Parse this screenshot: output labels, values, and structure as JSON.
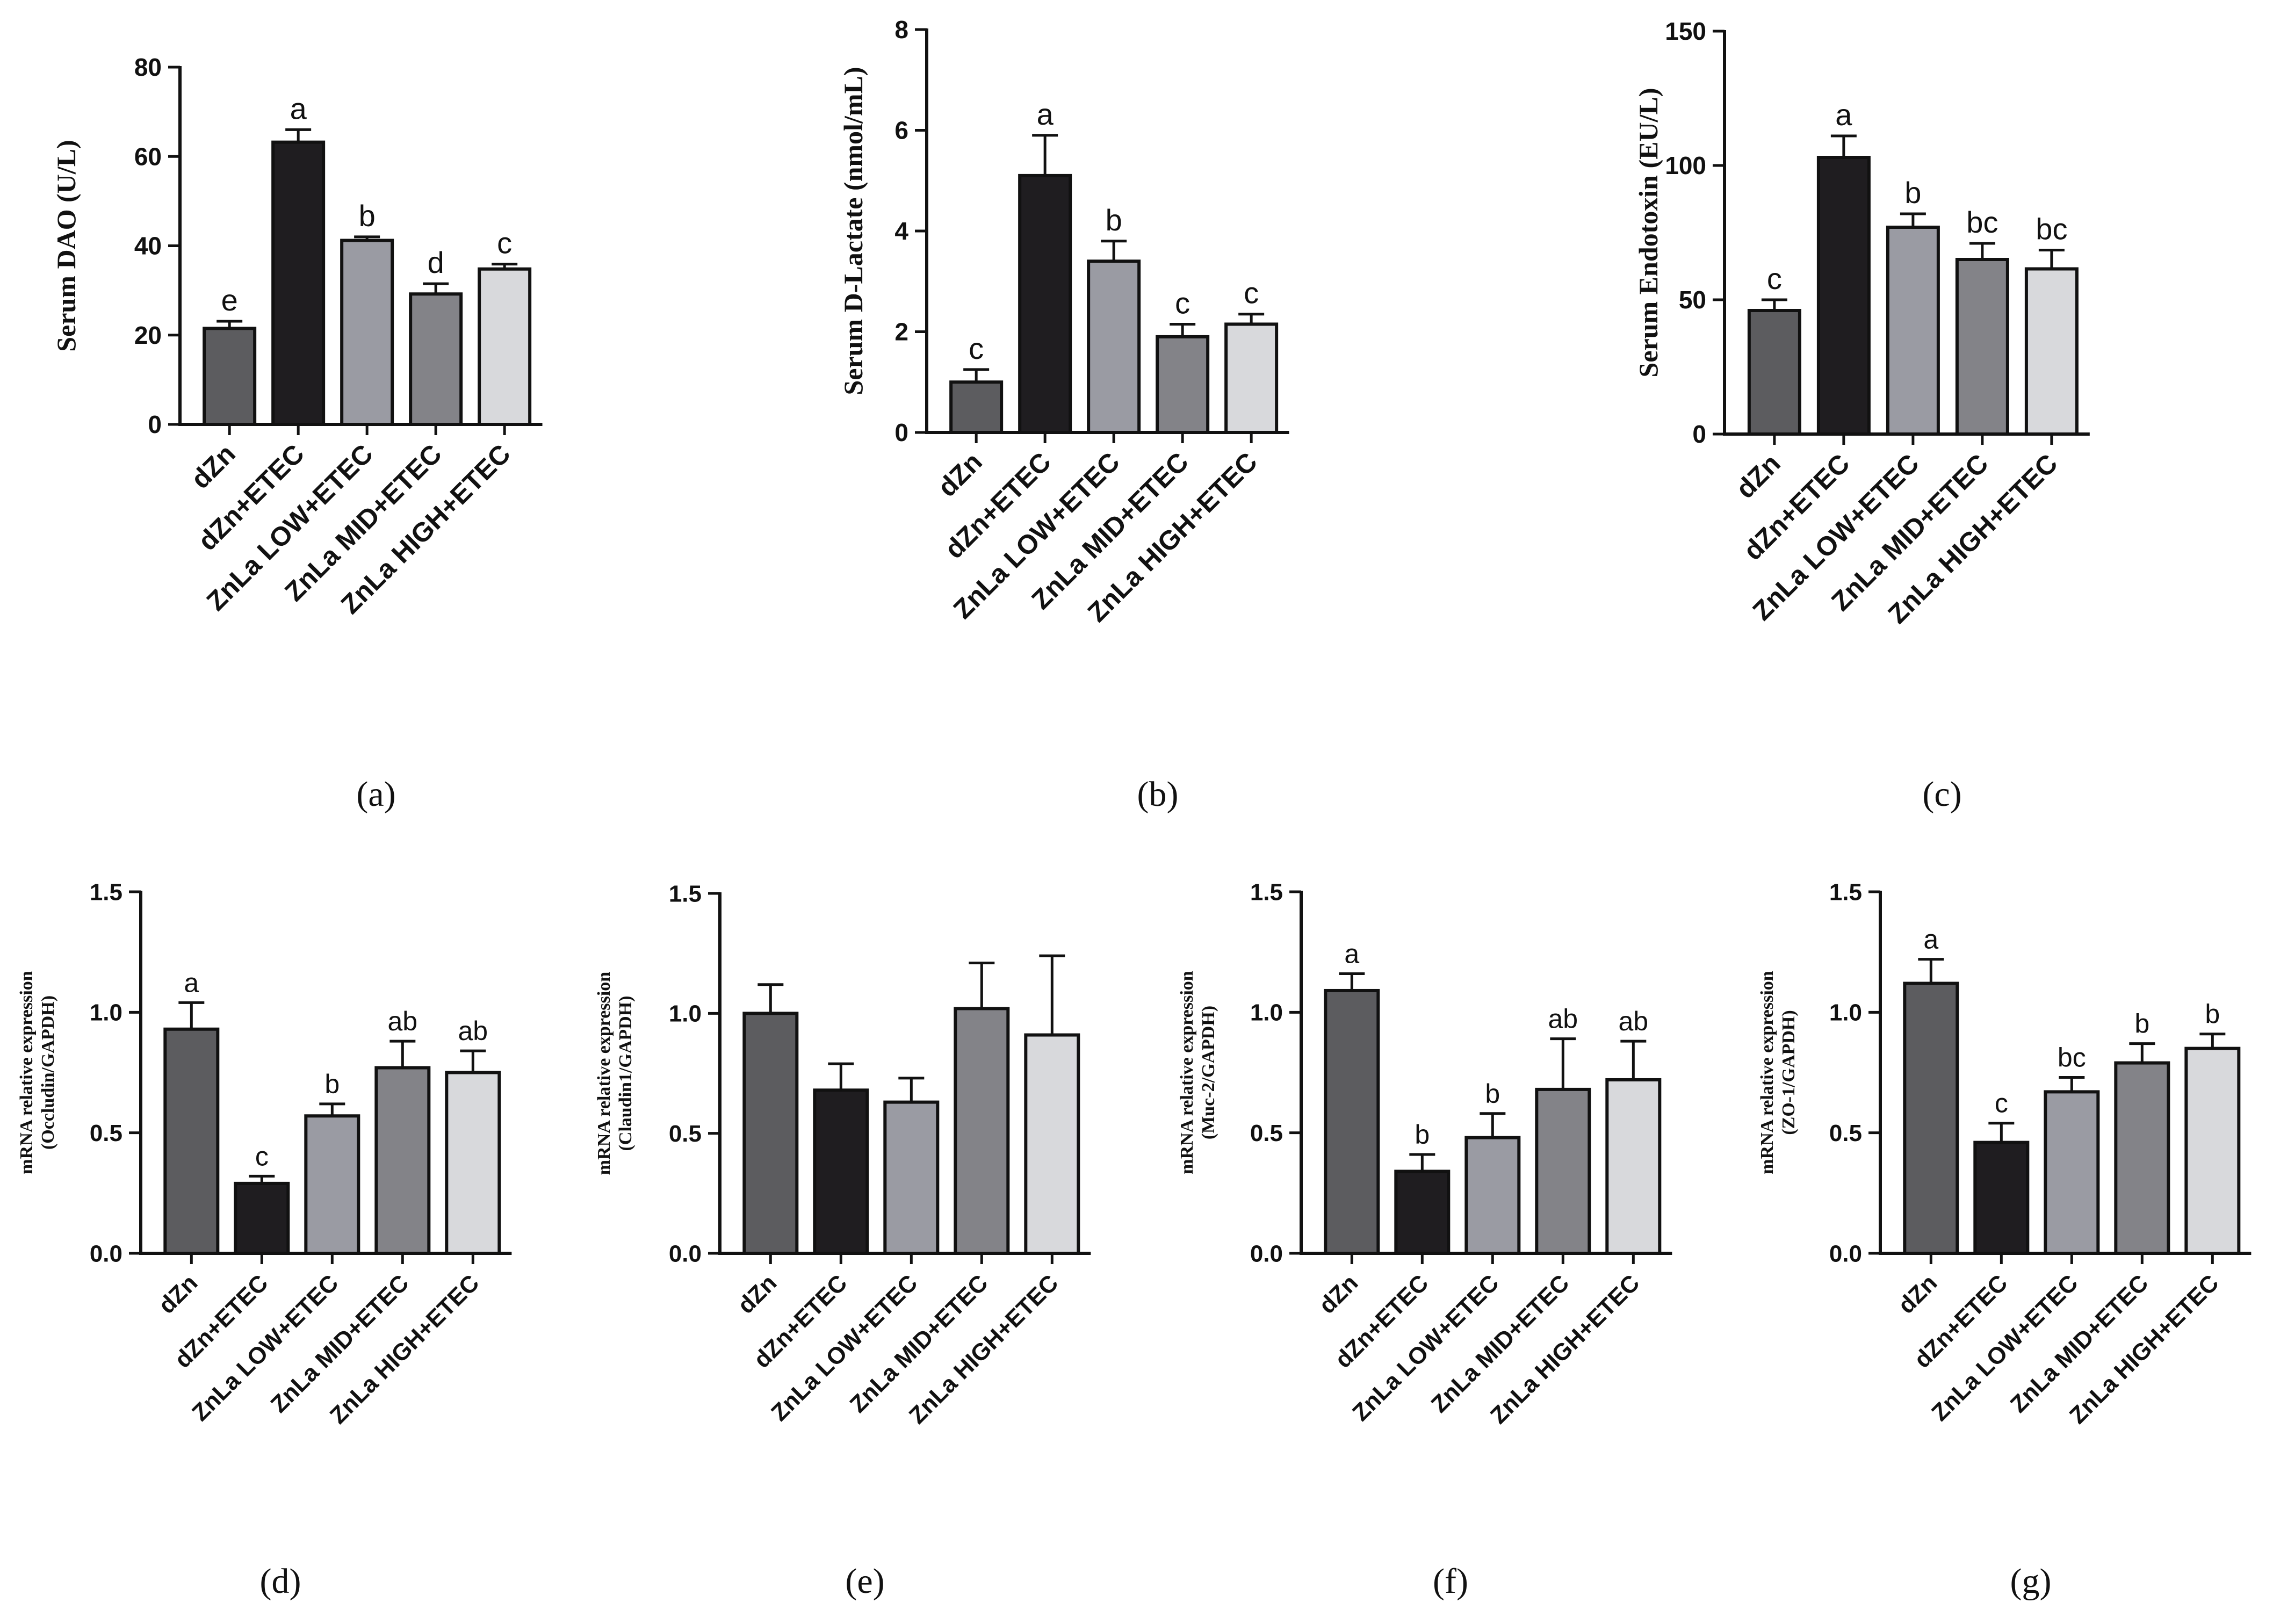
{
  "group_colors": [
    "#5c5c5f",
    "#1f1d20",
    "#9a9ba3",
    "#838388",
    "#d8d9dc"
  ],
  "chart_data": [
    {
      "type": "bar",
      "panel_label": "(a)",
      "ylabel": "Serum DAO (U/L)",
      "categories": [
        "dZn",
        "dZn+ETEC",
        "ZnLa LOW+ETEC",
        "ZnLa MID+ETEC",
        "ZnLa HIGH+ETEC"
      ],
      "values": [
        21.5,
        63.2,
        41.2,
        29.2,
        34.8
      ],
      "errors": [
        1.6,
        2.8,
        0.8,
        2.3,
        1.1
      ],
      "significance": [
        "e",
        "a",
        "b",
        "d",
        "c"
      ],
      "ylim": [
        0,
        80
      ],
      "yticks": [
        0,
        20,
        40,
        60,
        80
      ],
      "ytick_labels": [
        "0",
        "20",
        "40",
        "60",
        "80"
      ]
    },
    {
      "type": "bar",
      "panel_label": "(b)",
      "ylabel": "Serum D-Lactate (nmol/mL)",
      "categories": [
        "dZn",
        "dZn+ETEC",
        "ZnLa LOW+ETEC",
        "ZnLa MID+ETEC",
        "ZnLa HIGH+ETEC"
      ],
      "values": [
        1.0,
        5.1,
        3.4,
        1.9,
        2.15
      ],
      "errors": [
        0.25,
        0.8,
        0.4,
        0.25,
        0.2
      ],
      "significance": [
        "c",
        "a",
        "b",
        "c",
        "c"
      ],
      "ylim": [
        0,
        8
      ],
      "yticks": [
        0,
        2,
        4,
        6,
        8
      ],
      "ytick_labels": [
        "0",
        "2",
        "4",
        "6",
        "8"
      ]
    },
    {
      "type": "bar",
      "panel_label": "(c)",
      "ylabel": "Serum Endotoxin (EU/L)",
      "categories": [
        "dZn",
        "dZn+ETEC",
        "ZnLa LOW+ETEC",
        "ZnLa MID+ETEC",
        "ZnLa HIGH+ETEC"
      ],
      "values": [
        46,
        103,
        77,
        65,
        61.5
      ],
      "errors": [
        4,
        8,
        5,
        6,
        7
      ],
      "significance": [
        "c",
        "a",
        "b",
        "bc",
        "bc"
      ],
      "ylim": [
        0,
        150
      ],
      "yticks": [
        0,
        50,
        100,
        150
      ],
      "ytick_labels": [
        "0",
        "50",
        "100",
        "150"
      ]
    },
    {
      "type": "bar",
      "panel_label": "(d)",
      "ylabel": [
        "mRNA relative expression",
        "(Occludin/GAPDH)"
      ],
      "categories": [
        "dZn",
        "dZn+ETEC",
        "ZnLa LOW+ETEC",
        "ZnLa MID+ETEC",
        "ZnLa HIGH+ETEC"
      ],
      "values": [
        0.93,
        0.29,
        0.57,
        0.77,
        0.75
      ],
      "errors": [
        0.11,
        0.03,
        0.05,
        0.11,
        0.09
      ],
      "significance": [
        "a",
        "c",
        "b",
        "ab",
        "ab"
      ],
      "ylim": [
        0,
        1.5
      ],
      "yticks": [
        0,
        0.5,
        1.0,
        1.5
      ],
      "ytick_labels": [
        "0.0",
        "0.5",
        "1.0",
        "1.5"
      ]
    },
    {
      "type": "bar",
      "panel_label": "(e)",
      "ylabel": [
        "mRNA relative expression",
        "(Claudin1/GAPDH)"
      ],
      "categories": [
        "dZn",
        "dZn+ETEC",
        "ZnLa LOW+ETEC",
        "ZnLa MID+ETEC",
        "ZnLa HIGH+ETEC"
      ],
      "values": [
        1.0,
        0.68,
        0.63,
        1.02,
        0.91
      ],
      "errors": [
        0.12,
        0.11,
        0.1,
        0.19,
        0.33
      ],
      "significance": [
        "",
        "",
        "",
        "",
        ""
      ],
      "ylim": [
        0,
        1.5
      ],
      "yticks": [
        0,
        0.5,
        1.0,
        1.5
      ],
      "ytick_labels": [
        "0.0",
        "0.5",
        "1.0",
        "1.5"
      ]
    },
    {
      "type": "bar",
      "panel_label": "(f)",
      "ylabel": [
        "mRNA relative expression",
        "(Muc-2/GAPDH)"
      ],
      "categories": [
        "dZn",
        "dZn+ETEC",
        "ZnLa LOW+ETEC",
        "ZnLa MID+ETEC",
        "ZnLa HIGH+ETEC"
      ],
      "values": [
        1.09,
        0.34,
        0.48,
        0.68,
        0.72
      ],
      "errors": [
        0.07,
        0.07,
        0.1,
        0.21,
        0.16
      ],
      "significance": [
        "a",
        "b",
        "b",
        "ab",
        "ab"
      ],
      "ylim": [
        0,
        1.5
      ],
      "yticks": [
        0,
        0.5,
        1.0,
        1.5
      ],
      "ytick_labels": [
        "0.0",
        "0.5",
        "1.0",
        "1.5"
      ]
    },
    {
      "type": "bar",
      "panel_label": "(g)",
      "ylabel": [
        "mRNA relative expression",
        "(ZO-1/GAPDH)"
      ],
      "categories": [
        "dZn",
        "dZn+ETEC",
        "ZnLa LOW+ETEC",
        "ZnLa MID+ETEC",
        "ZnLa HIGH+ETEC"
      ],
      "values": [
        1.12,
        0.46,
        0.67,
        0.79,
        0.85
      ],
      "errors": [
        0.1,
        0.08,
        0.06,
        0.08,
        0.06
      ],
      "significance": [
        "a",
        "c",
        "bc",
        "b",
        "b"
      ],
      "ylim": [
        0,
        1.5
      ],
      "yticks": [
        0,
        0.5,
        1.0,
        1.5
      ],
      "ytick_labels": [
        "0.0",
        "0.5",
        "1.0",
        "1.5"
      ]
    }
  ]
}
